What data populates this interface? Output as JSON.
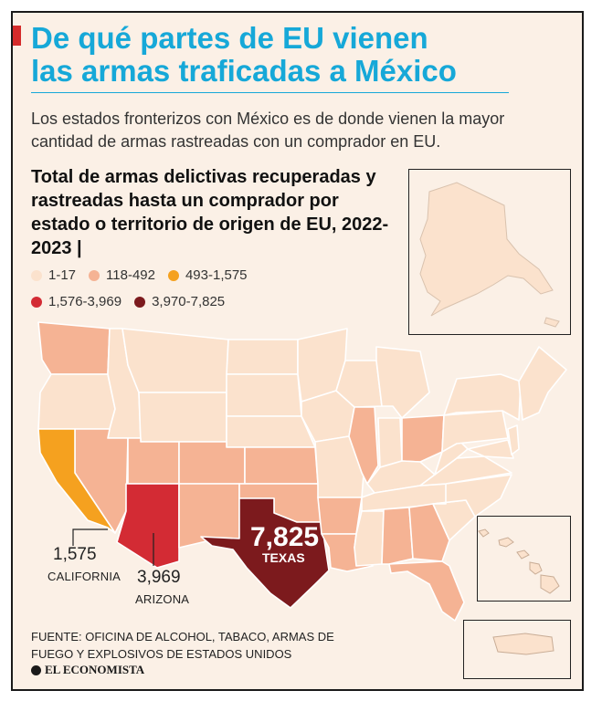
{
  "headline": [
    "De qué partes de EU vienen",
    "las armas traficadas a México"
  ],
  "subtitle": "Los estados fronterizos con México es de donde vienen la mayor cantidad de armas rastreadas con un comprador en EU.",
  "map_title": "Total de armas delictivas recuperadas y rastreadas hasta un comprador por estado o territorio de origen de EU, 2022-2023 |",
  "legend": [
    {
      "label": "1-17",
      "color": "#fbe2cd"
    },
    {
      "label": "118-492",
      "color": "#f5b394"
    },
    {
      "label": "493-1,575",
      "color": "#f5a11f"
    },
    {
      "label": "1,576-3,969",
      "color": "#d32b34"
    },
    {
      "label": "3,970-7,825",
      "color": "#7c1a1d"
    }
  ],
  "callouts": {
    "california": {
      "value": "1,575",
      "name": "CALIFORNIA"
    },
    "arizona": {
      "value": "3,969",
      "name": "ARIZONA"
    },
    "texas": {
      "value": "7,825",
      "name": "TEXAS"
    }
  },
  "source": "FUENTE: OFICINA DE ALCOHOL, TABACO, ARMAS DE FUEGO Y EXPLOSIVOS DE ESTADOS UNIDOS",
  "brand": "EL ECONOMISTA",
  "colors": {
    "light": "#fbe2cd",
    "medium": "#f5b394",
    "orange": "#f5a11f",
    "red": "#d32b34",
    "dark": "#7c1a1d",
    "border": "#ffffff"
  }
}
